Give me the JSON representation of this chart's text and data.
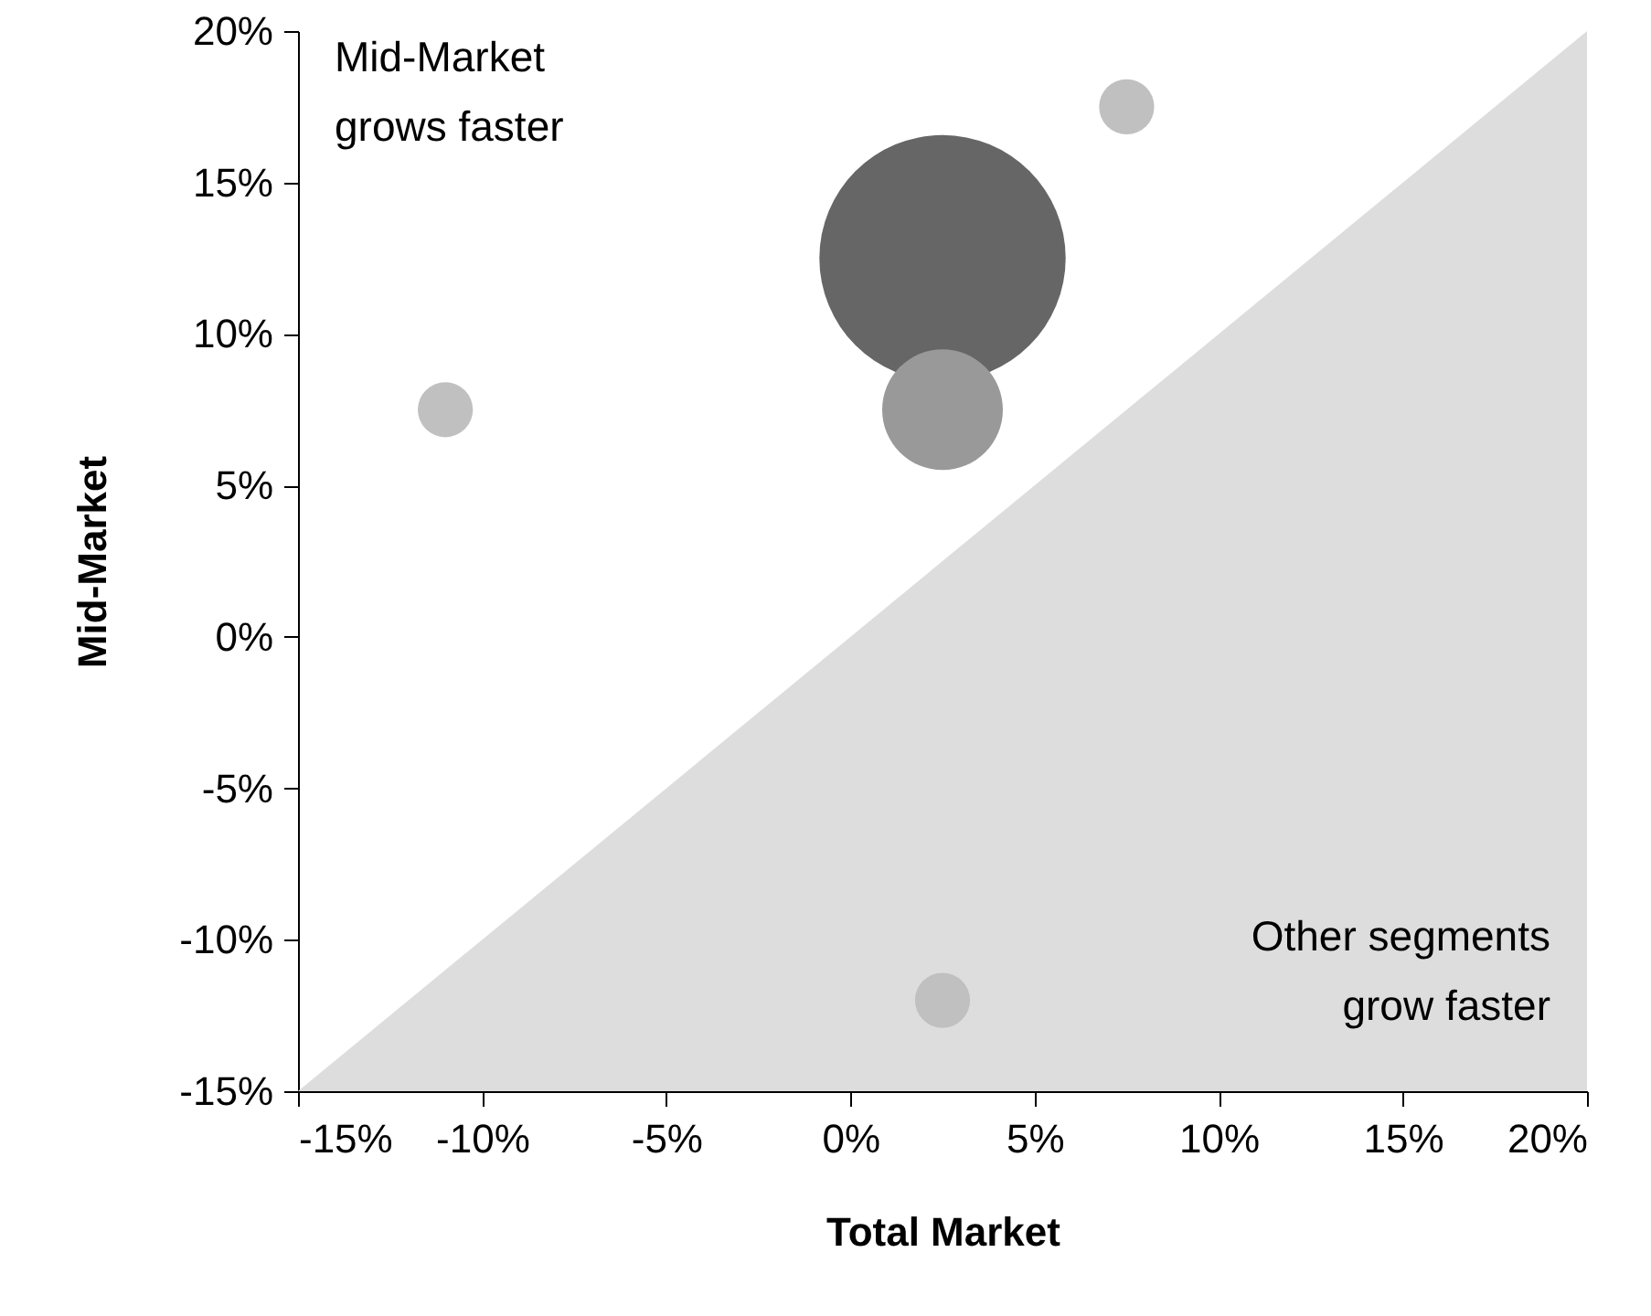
{
  "chart_data": {
    "type": "bubble",
    "xlabel": "Total Market",
    "ylabel": "Mid-Market",
    "xlim": [
      -15,
      20
    ],
    "ylim": [
      -15,
      20
    ],
    "xticks": [
      {
        "value": -15,
        "label": "-15%"
      },
      {
        "value": -10,
        "label": "-10%"
      },
      {
        "value": -5,
        "label": "-5%"
      },
      {
        "value": 0,
        "label": "0%"
      },
      {
        "value": 5,
        "label": "5%"
      },
      {
        "value": 10,
        "label": "10%"
      },
      {
        "value": 15,
        "label": "15%"
      },
      {
        "value": 20,
        "label": "20%"
      }
    ],
    "yticks": [
      {
        "value": -15,
        "label": "-15%"
      },
      {
        "value": -10,
        "label": "-10%"
      },
      {
        "value": -5,
        "label": "-5%"
      },
      {
        "value": 0,
        "label": "0%"
      },
      {
        "value": 5,
        "label": "5%"
      },
      {
        "value": 10,
        "label": "10%"
      },
      {
        "value": 15,
        "label": "15%"
      },
      {
        "value": 20,
        "label": "20%"
      }
    ],
    "annotations": [
      "Mid-Market\ngrows faster",
      "Other segments\ngrow faster"
    ],
    "series": [
      {
        "type": "area",
        "color": "#dddddd",
        "x": [
          -15,
          20
        ],
        "values": [
          -15,
          20
        ]
      },
      {
        "x": [
          -11,
          2.5,
          2.5,
          7.5,
          2.5
        ],
        "values": [
          7.5,
          12.5,
          7.5,
          17.5,
          -12
        ],
        "sizes": [
          0.05,
          1,
          0.24,
          0.05,
          0.05
        ],
        "colors": [
          "#c0c0c0",
          "#666666",
          "#999999",
          "#c0c0c0",
          "#c0c0c0"
        ]
      }
    ]
  }
}
